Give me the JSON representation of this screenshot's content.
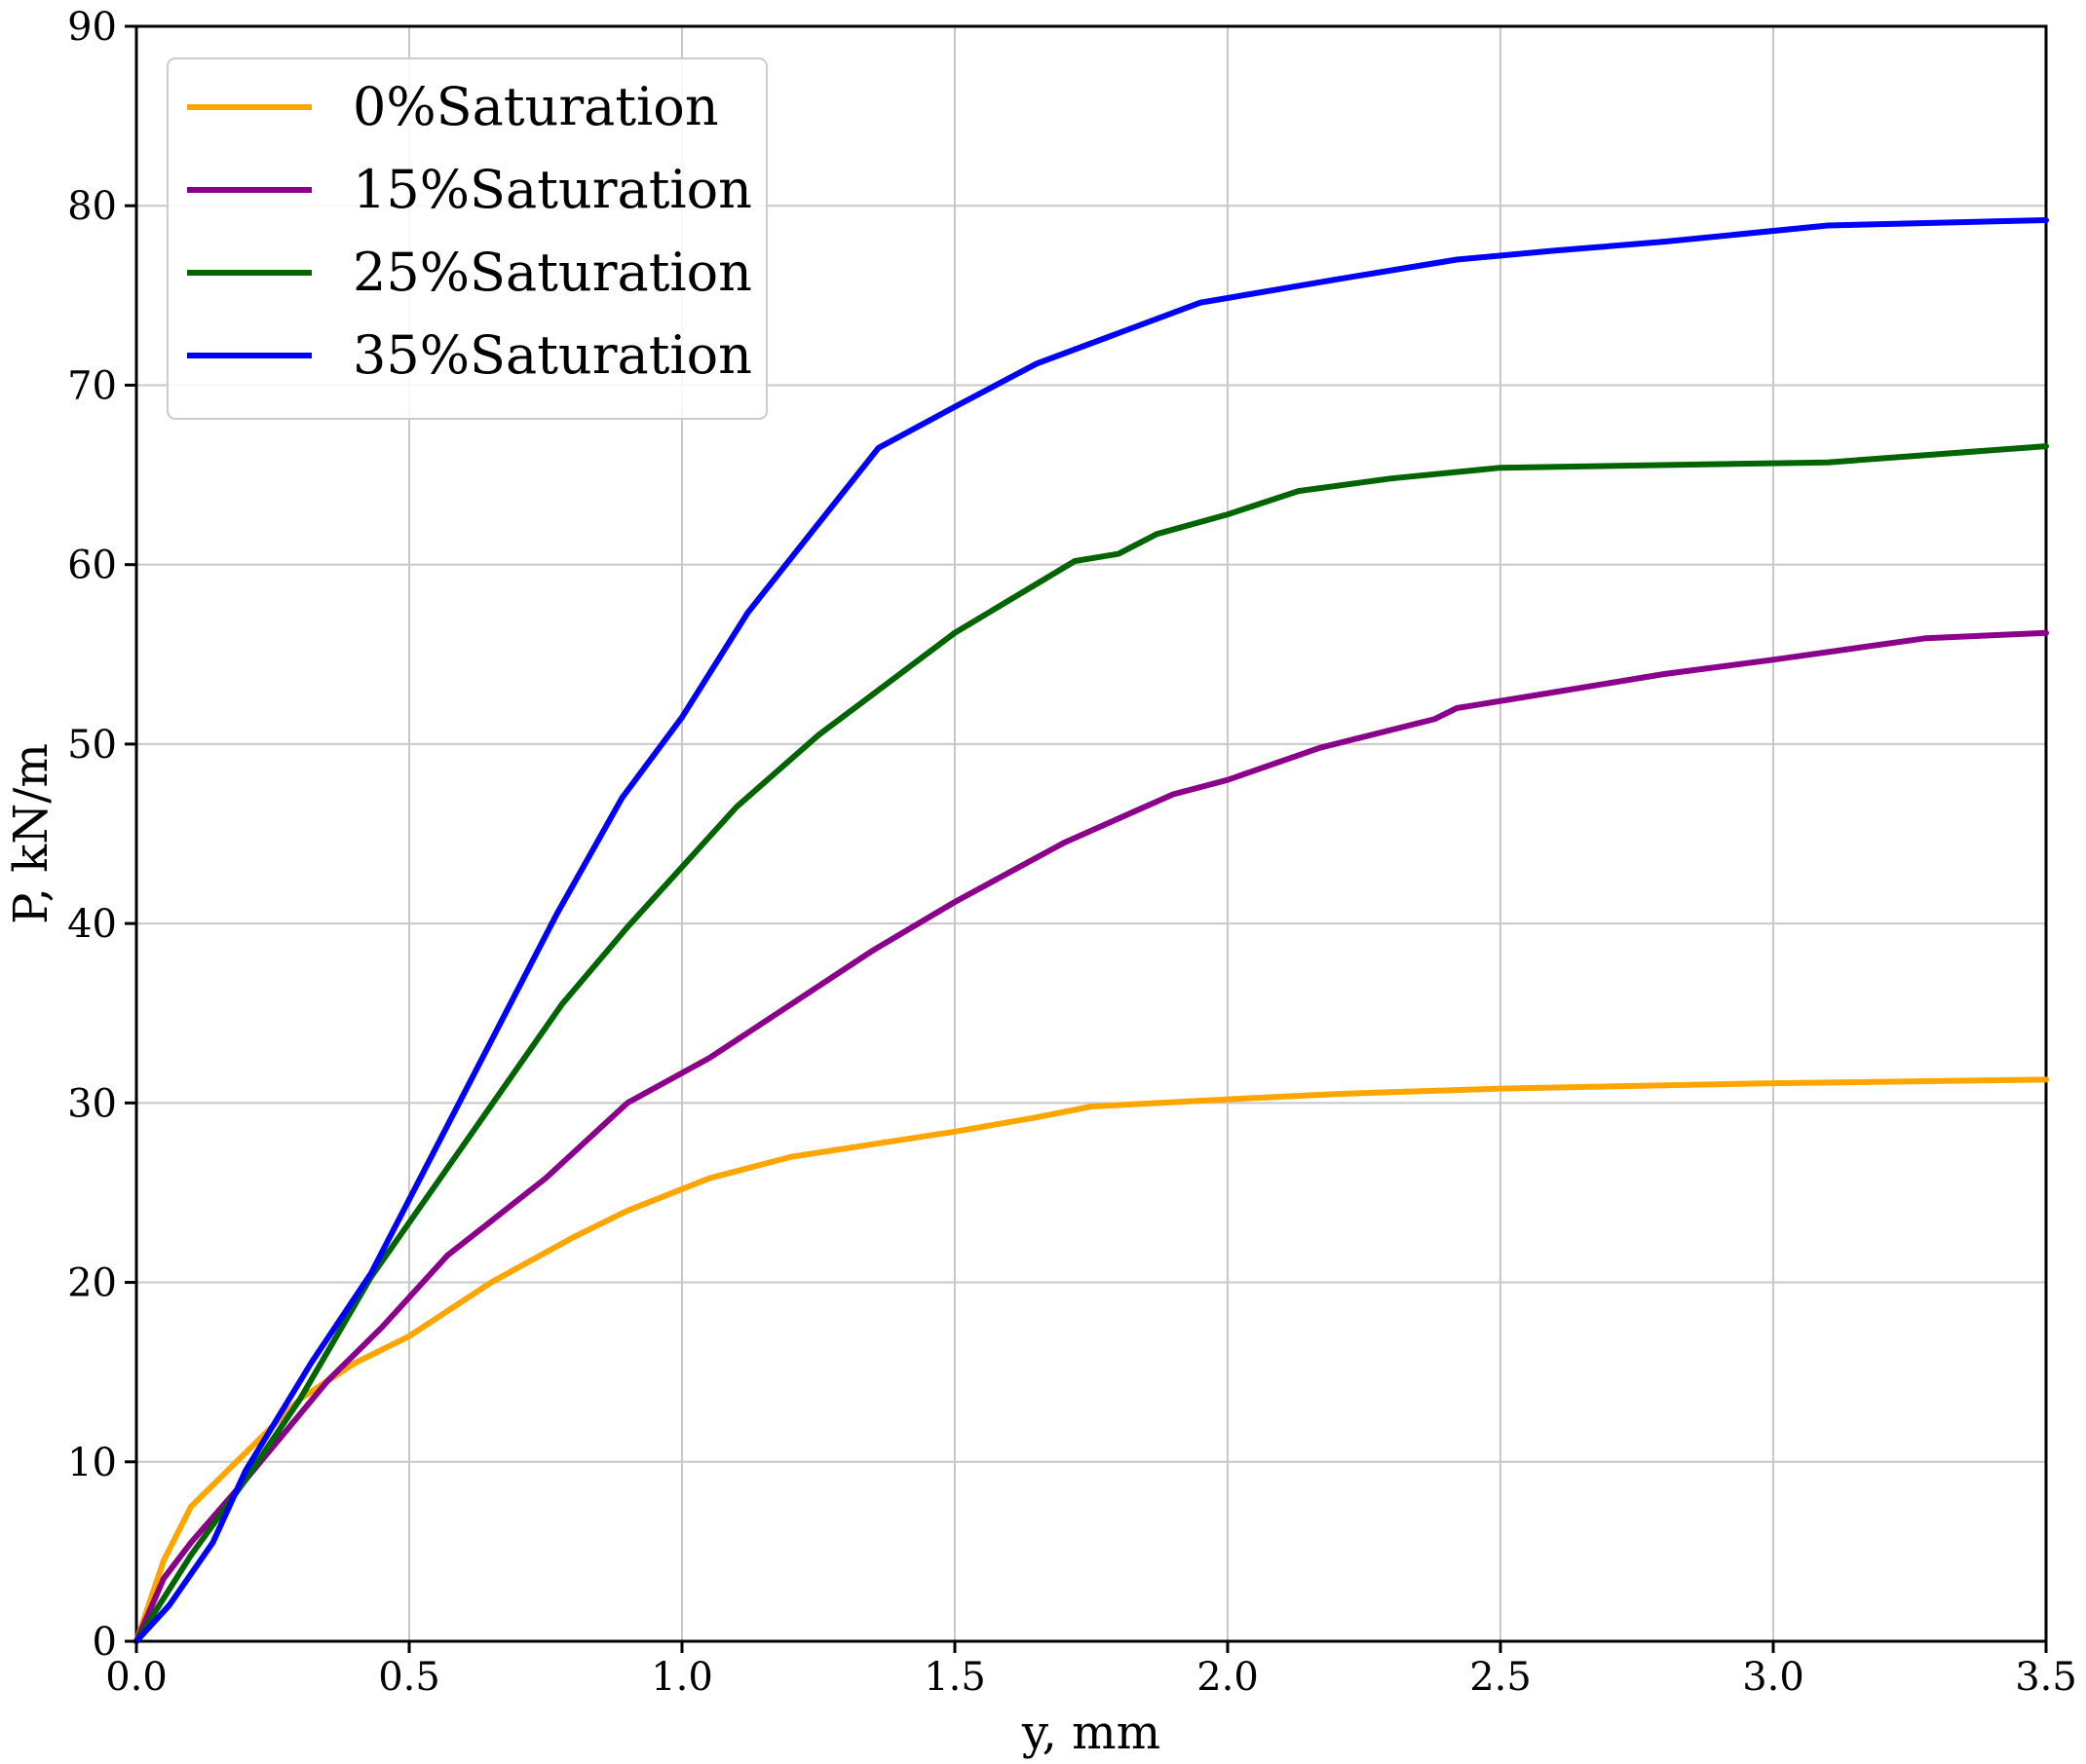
{
  "chart_data": {
    "type": "line",
    "title": "",
    "xlabel": "y, mm",
    "ylabel": "P, kN/m",
    "xlim": [
      0,
      3.5
    ],
    "ylim": [
      0,
      90
    ],
    "xticks": [
      0.0,
      0.5,
      1.0,
      1.5,
      2.0,
      2.5,
      3.0,
      3.5
    ],
    "xtick_labels": [
      "0.0",
      "0.5",
      "1.0",
      "1.5",
      "2.0",
      "2.5",
      "3.0",
      "3.5"
    ],
    "yticks": [
      0,
      10,
      20,
      30,
      40,
      50,
      60,
      70,
      80,
      90
    ],
    "ytick_labels": [
      "0",
      "10",
      "20",
      "30",
      "40",
      "50",
      "60",
      "70",
      "80",
      "90"
    ],
    "grid": true,
    "legend_position": "top-left",
    "series": [
      {
        "name": "0%Saturation",
        "color": "#FFA500",
        "x": [
          0,
          0.05,
          0.1,
          0.2,
          0.3,
          0.4,
          0.5,
          0.65,
          0.8,
          0.9,
          1.05,
          1.2,
          1.35,
          1.5,
          1.65,
          1.75,
          2.0,
          2.2,
          2.5,
          3.0,
          3.5
        ],
        "y": [
          0,
          4.5,
          7.5,
          10.5,
          13.5,
          15.5,
          17.0,
          20.0,
          22.5,
          24.0,
          25.8,
          27.0,
          27.7,
          28.4,
          29.2,
          29.8,
          30.2,
          30.5,
          30.8,
          31.1,
          31.3
        ]
      },
      {
        "name": "15%Saturation",
        "color": "#8B008B",
        "x": [
          0,
          0.05,
          0.1,
          0.2,
          0.35,
          0.45,
          0.57,
          0.75,
          0.9,
          1.05,
          1.2,
          1.35,
          1.5,
          1.7,
          1.9,
          2.0,
          2.17,
          2.38,
          2.42,
          2.6,
          2.8,
          3.0,
          3.28,
          3.5
        ],
        "y": [
          0,
          3.5,
          5.5,
          9.0,
          14.5,
          17.5,
          21.5,
          25.8,
          30.0,
          32.5,
          35.5,
          38.5,
          41.2,
          44.5,
          47.2,
          48.0,
          49.8,
          51.4,
          52.0,
          52.9,
          53.9,
          54.7,
          55.9,
          56.2
        ]
      },
      {
        "name": "25%Saturation",
        "color": "#006400",
        "x": [
          0,
          0.1,
          0.2,
          0.3,
          0.43,
          0.55,
          0.78,
          0.9,
          1.1,
          1.25,
          1.5,
          1.72,
          1.8,
          1.87,
          2.0,
          2.13,
          2.3,
          2.5,
          3.1,
          3.5
        ],
        "y": [
          0,
          4.8,
          9.0,
          13.5,
          20.3,
          25.5,
          35.5,
          39.8,
          46.5,
          50.5,
          56.2,
          60.2,
          60.6,
          61.7,
          62.8,
          64.1,
          64.8,
          65.4,
          65.7,
          66.6
        ]
      },
      {
        "name": "35%Saturation",
        "color": "#0000FF",
        "x": [
          0,
          0.06,
          0.14,
          0.2,
          0.32,
          0.43,
          0.6,
          0.77,
          0.89,
          1.0,
          1.12,
          1.36,
          1.5,
          1.65,
          1.8,
          1.95,
          2.2,
          2.42,
          2.6,
          2.8,
          3.1,
          3.5
        ],
        "y": [
          0,
          2.0,
          5.5,
          9.5,
          15.5,
          20.5,
          30.5,
          40.5,
          47.0,
          51.5,
          57.3,
          66.5,
          68.8,
          71.2,
          72.9,
          74.6,
          75.9,
          77.0,
          77.5,
          78.0,
          78.9,
          79.2
        ]
      }
    ]
  }
}
